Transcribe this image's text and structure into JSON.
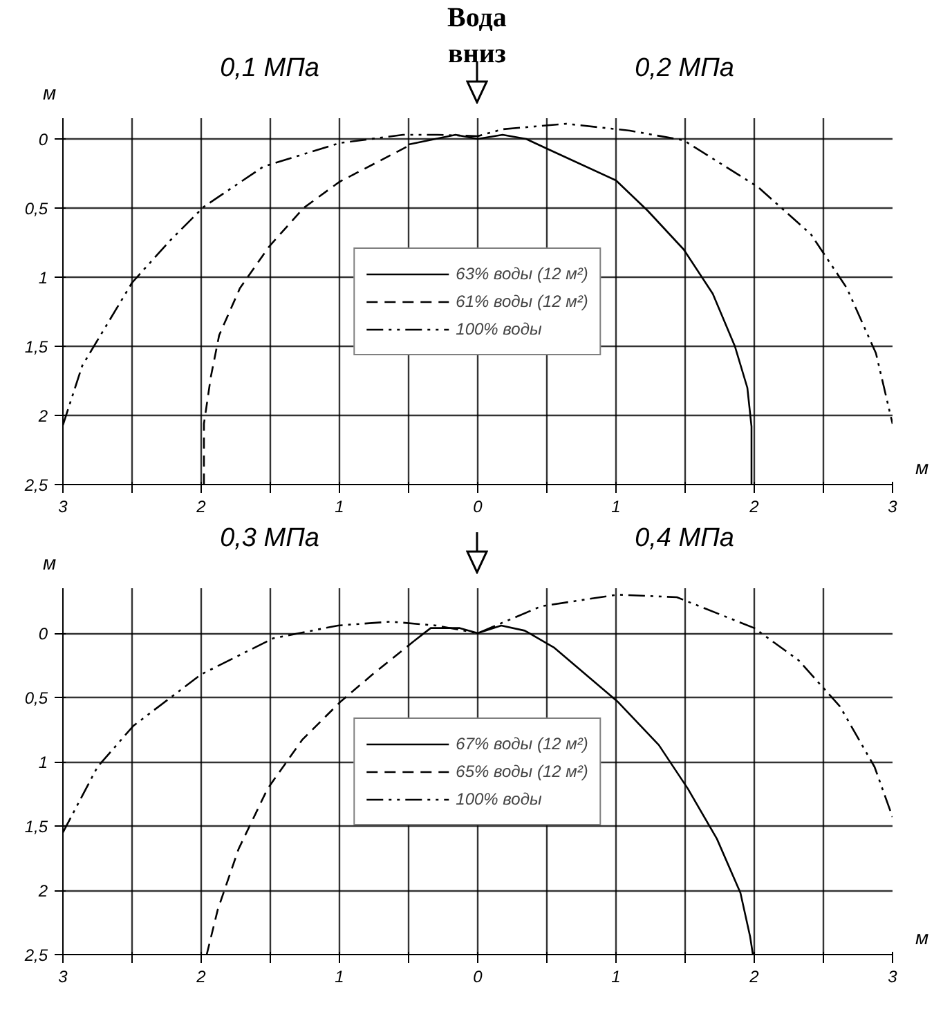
{
  "chart_data": [
    {
      "type": "line",
      "title": "Вода\nвниз",
      "annotations": [
        "0,1 МПа",
        "0,2 МПа"
      ],
      "xlabel": "м",
      "ylabel": "м",
      "xlim": [
        -3,
        3
      ],
      "xticks": [
        {
          "value": -3,
          "label": "3"
        },
        {
          "value": -2.5,
          "label": null
        },
        {
          "value": -2,
          "label": "2"
        },
        {
          "value": -1.5,
          "label": null
        },
        {
          "value": -1,
          "label": "1"
        },
        {
          "value": -0.5,
          "label": null
        },
        0,
        {
          "value": 0.5,
          "label": null
        },
        1,
        {
          "value": 1.5,
          "label": null
        },
        2,
        {
          "value": 2.5,
          "label": null
        },
        3
      ],
      "ylim": [
        2.5,
        -0.15
      ],
      "yticks": [
        0,
        {
          "value": 0.5,
          "label": "0,5"
        },
        1,
        {
          "value": 1.5,
          "label": "1,5"
        },
        2,
        {
          "value": 2.5,
          "label": "2,5"
        }
      ],
      "grid": true,
      "legend": "center",
      "marker": "none",
      "series": [
        {
          "name": "63% воды (12 м²)",
          "color": "#000000",
          "line_style": "solid",
          "x": [
            -0.5,
            -0.16,
            0,
            0.18,
            0.35,
            0.5,
            1.0,
            1.23,
            1.49,
            1.7,
            1.86,
            1.95,
            1.98,
            1.98
          ],
          "values": [
            0.04,
            -0.03,
            0,
            -0.03,
            0,
            0.07,
            0.3,
            0.52,
            0.8,
            1.12,
            1.5,
            1.8,
            2.08,
            2.5
          ]
        },
        {
          "name": "61% воды (12 м²)",
          "color": "#000000",
          "line_style": "dashed",
          "x": [
            -1.98,
            -1.98,
            -1.93,
            -1.87,
            -1.72,
            -1.51,
            -1.26,
            -1.0,
            -0.75,
            -0.5
          ],
          "values": [
            2.5,
            2.06,
            1.72,
            1.42,
            1.08,
            0.78,
            0.5,
            0.31,
            0.18,
            0.05
          ]
        },
        {
          "name": "100% воды",
          "color": "#000000",
          "line_style": "dashdot",
          "x": [
            -3,
            -2.86,
            -2.5,
            -2.23,
            -1.98,
            -1.55,
            -1.0,
            -0.54,
            -0.29,
            0,
            0.18,
            0.64,
            1.1,
            1.49,
            2.03,
            2.41,
            2.67,
            2.88,
            3.0
          ],
          "values": [
            2.07,
            1.64,
            1.04,
            0.74,
            0.49,
            0.2,
            0.03,
            -0.03,
            -0.03,
            -0.02,
            -0.07,
            -0.11,
            -0.06,
            0.01,
            0.35,
            0.69,
            1.08,
            1.55,
            2.06
          ]
        }
      ]
    },
    {
      "type": "line",
      "annotations": [
        "0,3 МПа",
        "0,4 МПа"
      ],
      "xlabel": "м",
      "ylabel": "м",
      "xlim": [
        -3,
        3
      ],
      "xticks": [
        {
          "value": -3,
          "label": "3"
        },
        {
          "value": -2.5,
          "label": null
        },
        {
          "value": -2,
          "label": "2"
        },
        {
          "value": -1.5,
          "label": null
        },
        {
          "value": -1,
          "label": "1"
        },
        {
          "value": -0.5,
          "label": null
        },
        0,
        {
          "value": 0.5,
          "label": null
        },
        1,
        {
          "value": 1.5,
          "label": null
        },
        2,
        {
          "value": 2.5,
          "label": null
        },
        3
      ],
      "ylim": [
        2.5,
        -0.35
      ],
      "yticks": [
        0,
        {
          "value": 0.5,
          "label": "0,5"
        },
        1,
        {
          "value": 1.5,
          "label": "1,5"
        },
        2,
        {
          "value": 2.5,
          "label": "2,5"
        }
      ],
      "grid": true,
      "legend": "center",
      "marker": "none",
      "series": [
        {
          "name": "67% воды (12 м²)",
          "color": "#000000",
          "line_style": "solid",
          "x": [
            -0.46,
            -0.34,
            -0.13,
            0,
            0.17,
            0.34,
            0.55,
            1.01,
            1.31,
            1.52,
            1.73,
            1.9,
            1.97,
            1.99
          ],
          "values": [
            0.06,
            -0.04,
            -0.04,
            0,
            -0.06,
            -0.02,
            0.11,
            0.53,
            0.87,
            1.21,
            1.6,
            2.02,
            2.36,
            2.5
          ]
        },
        {
          "name": "65% воды (12 м²)",
          "color": "#000000",
          "line_style": "dashed",
          "x": [
            -1.96,
            -1.88,
            -1.73,
            -1.52,
            -1.27,
            -0.99,
            -0.76,
            -0.46
          ],
          "values": [
            2.5,
            2.15,
            1.68,
            1.21,
            0.83,
            0.53,
            0.32,
            0.06
          ]
        },
        {
          "name": "100% воды",
          "color": "#000000",
          "line_style": "dashdot",
          "x": [
            -3,
            -2.75,
            -2.49,
            -2.0,
            -1.48,
            -1.01,
            -0.63,
            -0.3,
            0,
            0.46,
            1.01,
            1.44,
            2.0,
            2.32,
            2.62,
            2.87,
            3.0
          ],
          "values": [
            1.55,
            1.04,
            0.72,
            0.32,
            0.04,
            -0.06,
            -0.09,
            -0.06,
            0,
            -0.21,
            -0.3,
            -0.28,
            -0.04,
            0.21,
            0.57,
            1.04,
            1.43
          ]
        }
      ]
    }
  ]
}
